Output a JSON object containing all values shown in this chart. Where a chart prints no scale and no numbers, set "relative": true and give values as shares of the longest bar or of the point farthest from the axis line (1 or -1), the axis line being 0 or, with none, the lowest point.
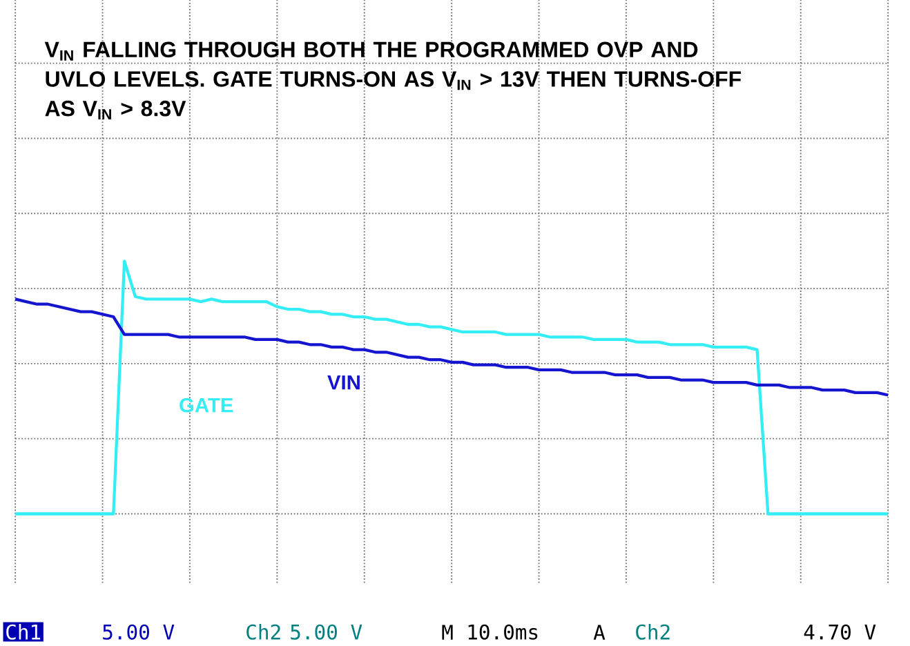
{
  "chart_data": {
    "type": "line",
    "title": "V$_{IN}$ FALLING THROUGH BOTH THE PROGRAMMED OVP AND UVLO LEVELS. GATE TURNS-ON AS V$_{IN}$ > 13V THEN TURNS-OFF AS V$_{IN}$ > 8.3V",
    "relative": true,
    "grid": true,
    "categories": [
      null,
      null,
      null,
      null,
      null,
      null,
      null,
      null,
      null,
      null,
      null,
      null,
      null,
      null,
      null,
      null,
      null,
      null,
      null,
      null,
      null,
      null,
      null,
      null,
      null,
      null,
      null,
      null,
      null,
      null,
      null,
      null,
      null,
      null,
      null,
      null,
      null,
      null,
      null,
      null,
      null,
      null,
      null,
      null,
      null,
      null,
      null,
      null,
      null,
      null,
      null,
      null,
      null,
      null,
      null,
      null,
      null,
      null,
      null,
      null,
      null,
      null,
      null,
      null,
      null,
      null,
      null,
      null,
      null,
      null,
      null,
      null,
      null,
      null,
      null,
      null,
      null,
      null,
      null,
      null,
      null
    ],
    "series": [
      {
        "name": "GATE",
        "color": "#33eef5",
        "values": [
          0,
          0,
          0,
          0,
          0,
          0,
          0,
          0,
          0,
          0,
          1.0,
          0.86,
          0.85,
          0.85,
          0.85,
          0.85,
          0.85,
          0.84,
          0.85,
          0.84,
          0.84,
          0.84,
          0.84,
          0.84,
          0.82,
          0.81,
          0.81,
          0.8,
          0.8,
          0.79,
          0.79,
          0.78,
          0.78,
          0.77,
          0.77,
          0.76,
          0.75,
          0.75,
          0.74,
          0.74,
          0.73,
          0.72,
          0.72,
          0.72,
          0.72,
          0.71,
          0.71,
          0.71,
          0.71,
          0.7,
          0.7,
          0.7,
          0.7,
          0.69,
          0.69,
          0.69,
          0.69,
          0.68,
          0.68,
          0.68,
          0.67,
          0.67,
          0.67,
          0.67,
          0.66,
          0.66,
          0.66,
          0.66,
          0.65,
          0,
          0,
          0,
          0,
          0,
          0,
          0,
          0,
          0,
          0,
          0,
          0
        ]
      },
      {
        "name": "VIN",
        "color": "#1515d0",
        "values": [
          0.85,
          0.84,
          0.83,
          0.83,
          0.82,
          0.81,
          0.8,
          0.8,
          0.79,
          0.78,
          0.71,
          0.71,
          0.71,
          0.71,
          0.71,
          0.7,
          0.7,
          0.7,
          0.7,
          0.7,
          0.7,
          0.7,
          0.69,
          0.69,
          0.69,
          0.68,
          0.68,
          0.67,
          0.67,
          0.66,
          0.66,
          0.65,
          0.65,
          0.64,
          0.64,
          0.63,
          0.62,
          0.62,
          0.61,
          0.61,
          0.6,
          0.6,
          0.59,
          0.59,
          0.59,
          0.58,
          0.58,
          0.58,
          0.57,
          0.57,
          0.57,
          0.56,
          0.56,
          0.56,
          0.56,
          0.55,
          0.55,
          0.55,
          0.54,
          0.54,
          0.54,
          0.53,
          0.53,
          0.53,
          0.52,
          0.52,
          0.52,
          0.52,
          0.51,
          0.51,
          0.51,
          0.5,
          0.5,
          0.5,
          0.49,
          0.49,
          0.49,
          0.48,
          0.48,
          0.48,
          0.47
        ]
      }
    ],
    "annotations": [
      "Ch1",
      "5.00 V",
      "Ch2",
      "5.00 V",
      "M",
      "10.0ms",
      "A",
      "Ch2",
      "4.70 V"
    ]
  }
}
